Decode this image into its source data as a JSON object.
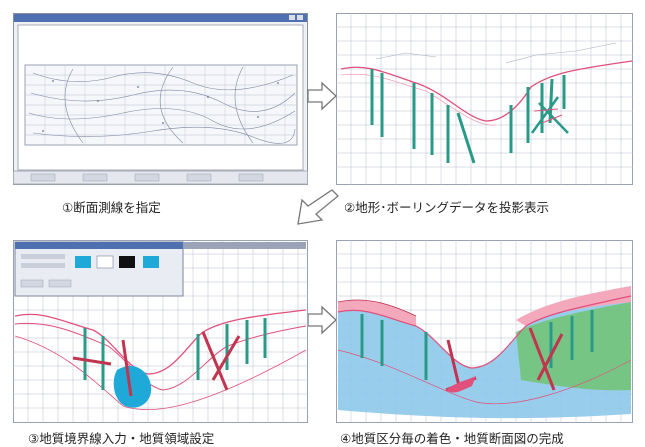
{
  "steps": [
    {
      "caption": "①断面測線を指定"
    },
    {
      "caption": "②地形･ボーリングデータを投影表示"
    },
    {
      "caption": "③地質境界線入力・地質領域設定"
    },
    {
      "caption": "④地質区分毎の着色・地質断面図の完成"
    }
  ],
  "colors": {
    "grid": "#b9bfd0",
    "terrain": "#e0507a",
    "boring": "#2a9a88",
    "layer_green": "#73c47a",
    "layer_blue": "#8ec8ea",
    "layer_pink": "#f3a8bb",
    "arrow": "#777777",
    "dialog_accent": "#1fa9d8"
  },
  "icons": [
    "arrow-right-icon",
    "arrow-down-left-icon"
  ]
}
